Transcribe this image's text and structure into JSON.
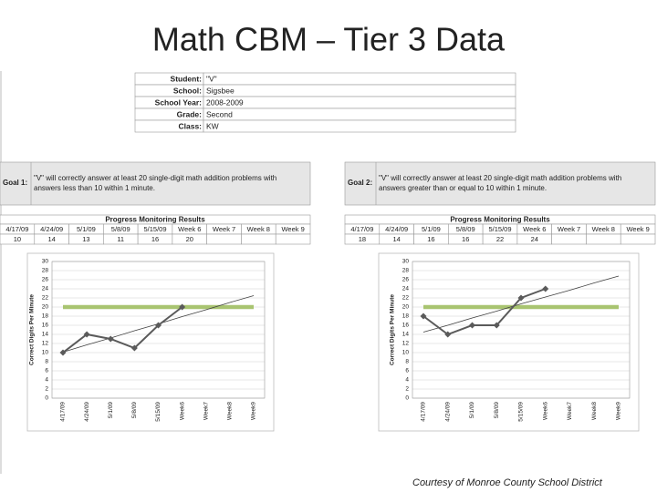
{
  "title": "Math CBM – Tier 3 Data",
  "student_info": [
    {
      "label": "Student:",
      "value": "\"V\""
    },
    {
      "label": "School:",
      "value": "Sigsbee"
    },
    {
      "label": "School Year:",
      "value": "2008-2009"
    },
    {
      "label": "Grade:",
      "value": "Second"
    },
    {
      "label": "Class:",
      "value": "KW"
    }
  ],
  "panels": [
    {
      "goal_label": "Goal 1:",
      "goal_lines": [
        "\"V\" will correctly answer at least 20 single-digit math addition problems with",
        "answers less than 10 within 1 minute."
      ],
      "results_title": "Progress Monitoring Results",
      "weeks": [
        "4/17/09",
        "4/24/09",
        "5/1/09",
        "5/8/09",
        "5/15/09",
        "Week 6",
        "Week 7",
        "Week 8",
        "Week 9"
      ]
    },
    {
      "goal_label": "Goal 2:",
      "goal_lines": [
        "\"V\" will correctly answer at least 20 single-digit math addition problems with",
        "answers greater than or equal to 10 within 1 minute."
      ],
      "results_title": "Progress Monitoring Results",
      "weeks": [
        "4/17/09",
        "4/24/09",
        "5/1/09",
        "5/8/09",
        "5/15/09",
        "Week 6",
        "Week 7",
        "Week 8",
        "Week 9"
      ]
    }
  ],
  "chart_data": [
    {
      "type": "line",
      "y_label": "Correct Digits Per Minute",
      "categories": [
        "4/17/09",
        "4/24/09",
        "5/1/09",
        "5/8/09",
        "5/15/09",
        "Week6",
        "Week7",
        "Week8",
        "Week9"
      ],
      "ylim": [
        0,
        30
      ],
      "yticks": [
        0,
        2,
        4,
        6,
        8,
        10,
        12,
        14,
        16,
        18,
        20,
        22,
        24,
        26,
        28,
        30
      ],
      "grid": true,
      "series": [
        {
          "color": "#5a5a5a",
          "marker": "diamond",
          "values": [
            10,
            14,
            13,
            11,
            16,
            20,
            null,
            null,
            null
          ]
        },
        {
          "color": "#404040",
          "values": [
            10.1,
            11.7,
            13.2,
            14.8,
            16.3,
            17.9,
            19.4,
            21.0,
            22.5
          ]
        },
        {
          "color": "#9bbb59",
          "values": [
            20,
            20,
            20,
            20,
            20,
            20,
            20,
            20,
            20
          ]
        }
      ]
    },
    {
      "type": "line",
      "y_label": "Correct Digits Per Minute",
      "categories": [
        "4/17/09",
        "4/24/09",
        "5/1/09",
        "5/8/09",
        "5/15/09",
        "Week6",
        "Week7",
        "Week8",
        "Week9"
      ],
      "ylim": [
        0,
        30
      ],
      "yticks": [
        0,
        2,
        4,
        6,
        8,
        10,
        12,
        14,
        16,
        18,
        20,
        22,
        24,
        26,
        28,
        30
      ],
      "grid": true,
      "series": [
        {
          "color": "#5a5a5a",
          "marker": "diamond",
          "values": [
            18,
            14,
            16,
            16,
            22,
            24,
            null,
            null,
            null
          ]
        },
        {
          "color": "#404040",
          "values": [
            14.5,
            16.0,
            17.6,
            19.1,
            20.7,
            22.2,
            23.7,
            25.3,
            26.8
          ]
        },
        {
          "color": "#9bbb59",
          "values": [
            20,
            20,
            20,
            20,
            20,
            20,
            20,
            20,
            20
          ]
        }
      ]
    }
  ],
  "footer": "Courtesy  of Monroe County School District"
}
